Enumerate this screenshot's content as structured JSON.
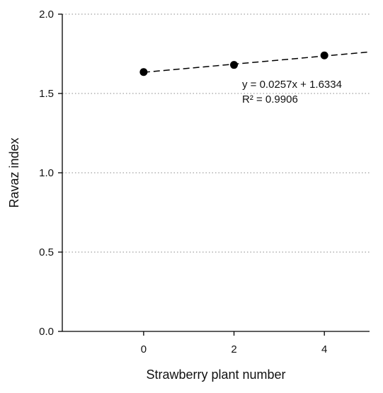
{
  "chart_data": {
    "type": "scatter",
    "xlabel": "Strawberry plant number",
    "ylabel": "Ravaz index",
    "xlim": [
      -1.8,
      5
    ],
    "ylim": [
      0,
      2
    ],
    "x_ticks": [
      "0",
      "2",
      "4"
    ],
    "y_ticks": [
      "0.0",
      "0.5",
      "1.0",
      "1.5",
      "2.0"
    ],
    "grid": "horizontal dotted",
    "series": [
      {
        "x": [
          0,
          2,
          4
        ],
        "y": [
          1.635,
          1.68,
          1.74
        ],
        "marker": "filled circle",
        "color": "#000000"
      }
    ],
    "trendline": {
      "slope": 0.0257,
      "intercept": 1.6334,
      "x_range": [
        0,
        5
      ],
      "style": "dashed",
      "color": "#000000"
    },
    "annotations": {
      "equation": "y = 0.0257x + 1.6334",
      "r_squared": "R² = 0.9906"
    }
  }
}
